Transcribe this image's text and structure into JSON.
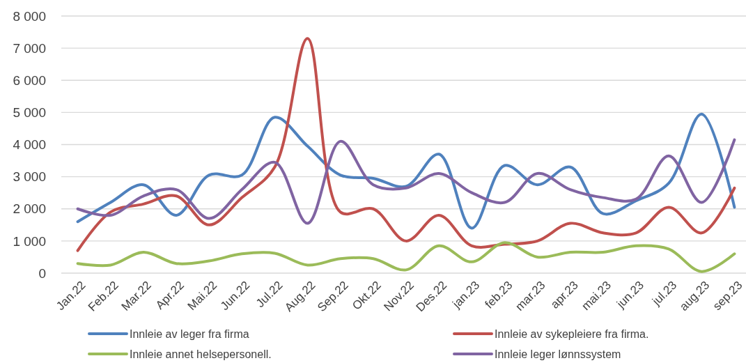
{
  "chart_data": {
    "type": "line",
    "categories": [
      "Jan.22",
      "Feb.22",
      "Mar.22",
      "Apr.22",
      "Mai.22",
      "Jun.22",
      "Jul.22",
      "Aug.22",
      "Sep.22",
      "Okt.22",
      "Nov.22",
      "Des.22",
      "jan.23",
      "feb.23",
      "mar.23",
      "apr.23",
      "mai.23",
      "jun.23",
      "jul.23",
      "aug.23",
      "sep.23"
    ],
    "series": [
      {
        "name": "Innleie av leger fra firma",
        "color": "#4f81bd",
        "values": [
          1600,
          2200,
          2750,
          1800,
          3050,
          3050,
          4850,
          3950,
          3050,
          2950,
          2700,
          3700,
          1400,
          3350,
          2750,
          3300,
          1850,
          2250,
          2800,
          4950,
          2050
        ]
      },
      {
        "name": "Innleie av sykepleiere fra firma.",
        "color": "#c0504d",
        "values": [
          700,
          1900,
          2150,
          2400,
          1500,
          2350,
          3300,
          7300,
          1900,
          2000,
          1000,
          1800,
          850,
          900,
          1000,
          1550,
          1250,
          1250,
          2050,
          1250,
          2650
        ]
      },
      {
        "name": "Innleie annet helsepersonell.",
        "color": "#9bbb59",
        "values": [
          300,
          250,
          650,
          300,
          380,
          600,
          620,
          250,
          450,
          450,
          100,
          850,
          350,
          950,
          500,
          650,
          650,
          850,
          750,
          50,
          600
        ]
      },
      {
        "name": "Innleie leger lønnssystem",
        "color": "#8064a2",
        "values": [
          2000,
          1800,
          2400,
          2600,
          1700,
          2600,
          3450,
          1550,
          4100,
          2750,
          2650,
          3100,
          2500,
          2200,
          3100,
          2600,
          2350,
          2300,
          3650,
          2200,
          4150
        ]
      }
    ],
    "ylim": [
      0,
      8000
    ],
    "yticks": [
      {
        "value": 0,
        "label": "0"
      },
      {
        "value": 1000,
        "label": "1 000"
      },
      {
        "value": 2000,
        "label": "2 000"
      },
      {
        "value": 3000,
        "label": "3 000"
      },
      {
        "value": 4000,
        "label": "4 000"
      },
      {
        "value": 5000,
        "label": "5 000"
      },
      {
        "value": 6000,
        "label": "6 000"
      },
      {
        "value": 7000,
        "label": "7 000"
      },
      {
        "value": 8000,
        "label": "8 000"
      }
    ],
    "grid": "y",
    "legend": "bottom",
    "marker": "none",
    "line_style": "solid"
  }
}
